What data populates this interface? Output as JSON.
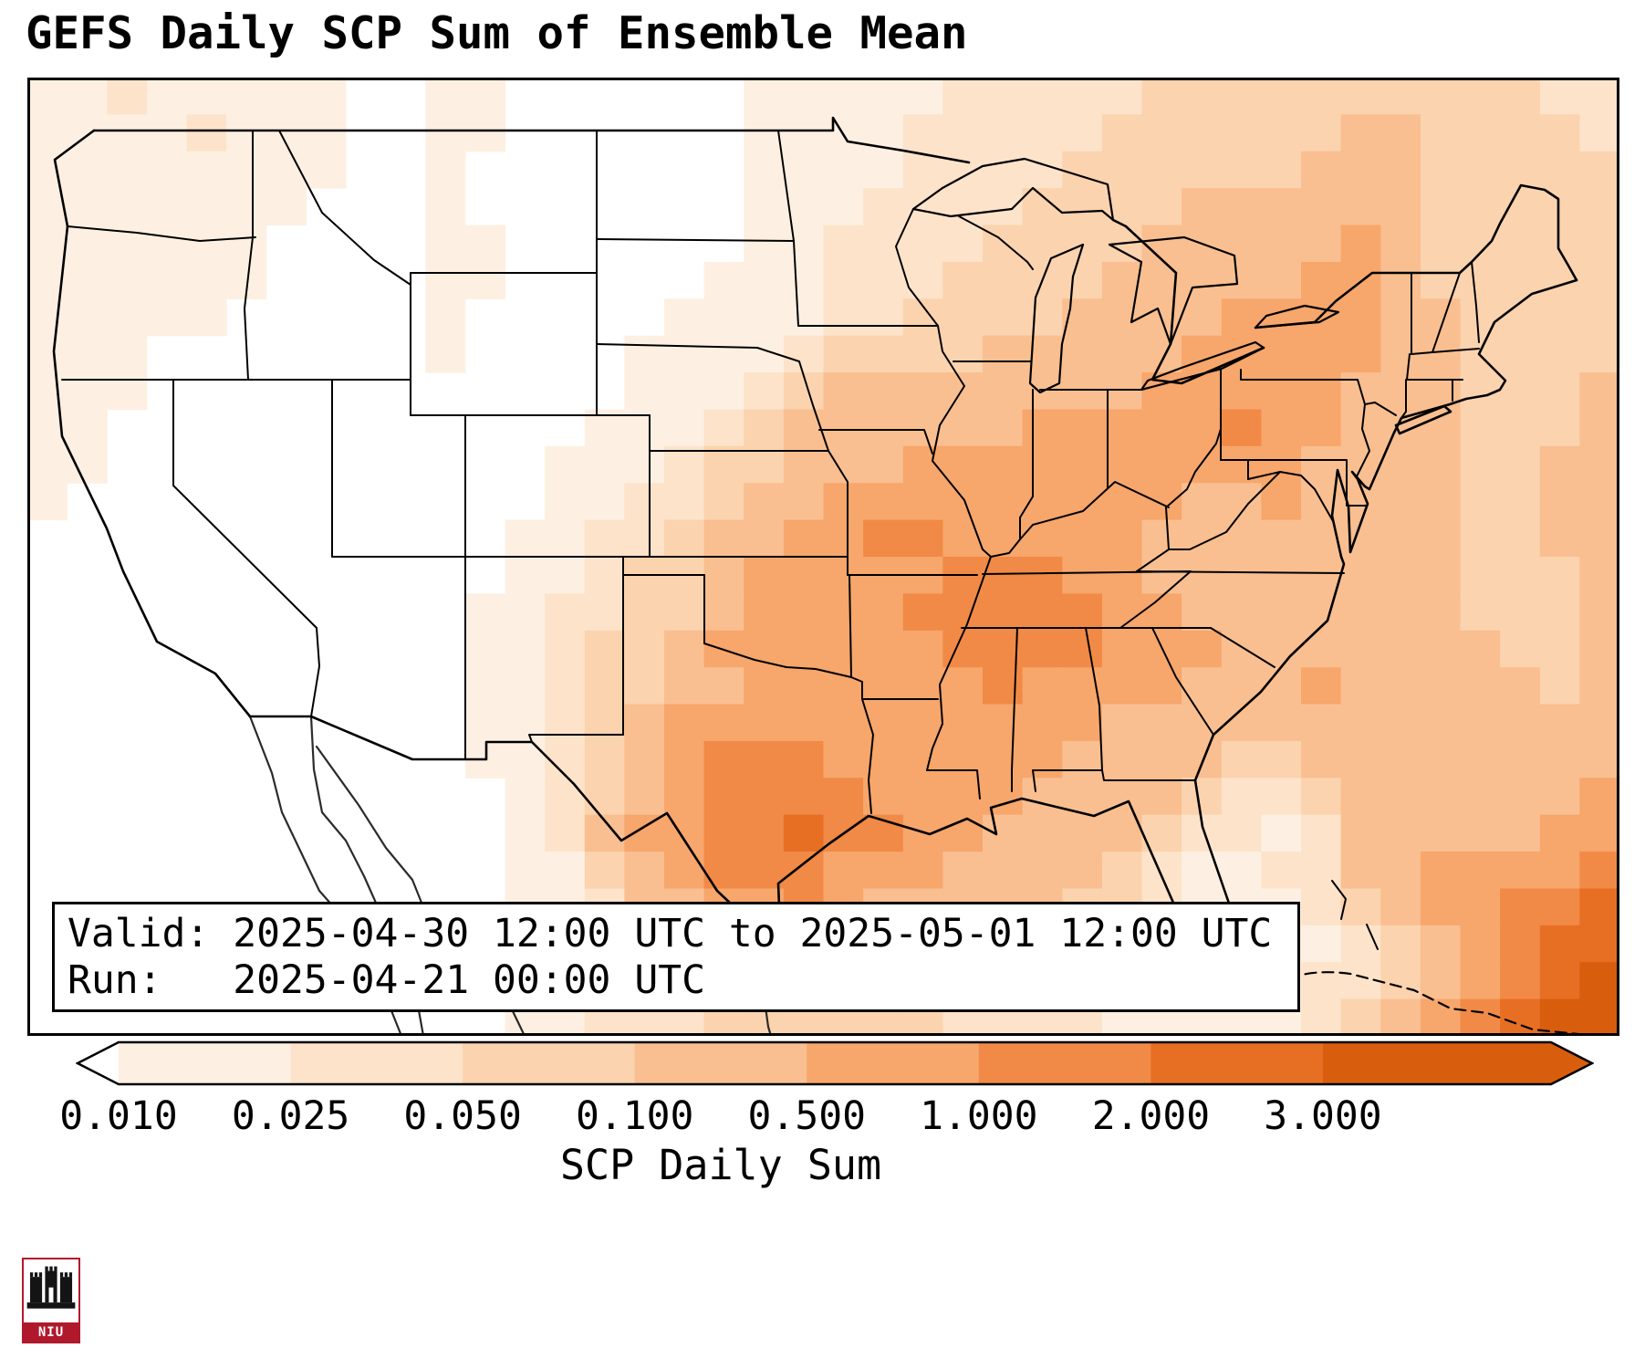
{
  "title": "GEFS Daily SCP Sum of Ensemble Mean",
  "info_box": {
    "line1": "Valid: 2025-04-30 12:00 UTC to 2025-05-01 12:00 UTC",
    "line2": "Run:   2025-04-21 00:00 UTC"
  },
  "colorbar": {
    "label": "SCP Daily Sum",
    "ticks": [
      "0.010",
      "0.025",
      "0.050",
      "0.100",
      "0.500",
      "1.000",
      "2.000",
      "3.000"
    ]
  },
  "logo": {
    "text": "NIU",
    "color": "#b0182c"
  },
  "chart_data": {
    "type": "heatmap",
    "title": "GEFS Daily SCP Sum of Ensemble Mean",
    "colorbar_label": "SCP Daily Sum",
    "valid": "2025-04-30 12:00 UTC to 2025-05-01 12:00 UTC",
    "run": "2025-04-21 00:00 UTC",
    "levels": [
      0.01,
      0.025,
      0.05,
      0.1,
      0.5,
      1.0,
      2.0,
      3.0
    ],
    "palette": [
      "#ffffff",
      "#fdf0e2",
      "#fce3ca",
      "#fbd3ae",
      "#f9bf90",
      "#f7a66c",
      "#f18a46",
      "#e76f23",
      "#d85e0d"
    ],
    "legend": "palette index 0 = below 0.010 (white), indexes 1-7 = between successive levels, index 8 = above 3.000",
    "grid_cols": 40,
    "grid_rows": 26,
    "intensity_grid": [
      "1121111100110000001111122222333333333322",
      "1111211100110000001111222223333334433332",
      "1111111100100000001111222233333344433333",
      "1111111000100000001112222333344444433333",
      "1111110000110000001122223333444445433333",
      "1111110000110000011122233334444455433333",
      "1111100000100000111122333344445555443333",
      "1110000000100001111233334444455555443333",
      "1110000000000001112344444444555554443334",
      "1100000000000011123444444555556554443334",
      "1100000000000111233444555555555544443344",
      "1000000000000112234455555555544544443344",
      "0000000000001122344556655555444444443344",
      "0000000000001123345555566655444444443334",
      "0000000000011223345555666665544444443334",
      "0000000000011233455555566665554444444334",
      "0000000000011233445555556555544454444434",
      "0000000000011234555555555554444444444444",
      "0000000000011234566655555544443344444444",
      "0000000000001234566665555444432234444445",
      "0000000000001245566766554444322124444455",
      "0000000000001134566655544443211224455556",
      "0000000000001124455654444433211123455667",
      "0000000000000123445544433332111112345677",
      "0000000000000122334433333222111122345678",
      "0000000000001122233333322221111123456788"
    ]
  }
}
